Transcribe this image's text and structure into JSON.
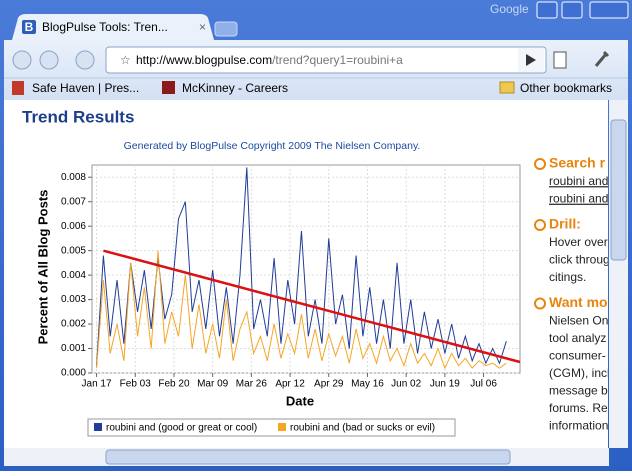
{
  "browser": {
    "tab_title": "BlogPulse Tools: Tren...",
    "brand": "Google",
    "url_host": "http://www.blogpulse.com",
    "url_rest": "/trend?query1=roubini+a",
    "bookmarks": [
      "Safe Haven | Pres...",
      "McKinney - Careers"
    ],
    "other_bookmarks": "Other bookmarks"
  },
  "page": {
    "heading": "Trend Results",
    "sidebar": [
      {
        "title": "Search r",
        "lines": [
          "roubini and",
          "roubini and"
        ]
      },
      {
        "title": "Drill:",
        "lines": [
          "Hover over",
          "click throug",
          "citings."
        ]
      },
      {
        "title": "Want mo",
        "lines": [
          "Nielsen On",
          "tool analyz",
          "consumer-",
          "(CGM), incl",
          "message b",
          "forums. Re",
          "information"
        ]
      }
    ]
  },
  "chart_data": {
    "type": "line",
    "title": "Generated by BlogPulse Copyright 2009 The Nielsen Company.",
    "x_label": "Date",
    "y_label": "Percent of All Blog Posts",
    "x": [
      0,
      3,
      6,
      9,
      12,
      15,
      18,
      21,
      24,
      27,
      30,
      33,
      36,
      39,
      42,
      45,
      48,
      51,
      54,
      57,
      60,
      63,
      66,
      69,
      72,
      75,
      78,
      81,
      84,
      87,
      90,
      93,
      96,
      99,
      102,
      105,
      108,
      111,
      114,
      117,
      120,
      123,
      126,
      129,
      132,
      135,
      138,
      141,
      144,
      147,
      150,
      153,
      156,
      159,
      162,
      165,
      168,
      171,
      174,
      177,
      180
    ],
    "series": [
      {
        "name": "roubini and (good or great or cool)",
        "color": "#1f3d99",
        "values": [
          0.0003,
          0.0048,
          0.0015,
          0.0038,
          0.0012,
          0.0045,
          0.0025,
          0.0042,
          0.0018,
          0.0047,
          0.0022,
          0.0032,
          0.0063,
          0.007,
          0.0025,
          0.0038,
          0.0018,
          0.0042,
          0.0015,
          0.0035,
          0.0012,
          0.004,
          0.0084,
          0.0018,
          0.003,
          0.0015,
          0.0047,
          0.0012,
          0.0038,
          0.002,
          0.0058,
          0.0015,
          0.003,
          0.0012,
          0.0055,
          0.002,
          0.0032,
          0.001,
          0.0048,
          0.0015,
          0.0035,
          0.0012,
          0.003,
          0.001,
          0.0045,
          0.0012,
          0.003,
          0.0008,
          0.0025,
          0.001,
          0.0022,
          0.0008,
          0.002,
          0.0006,
          0.0015,
          0.0005,
          0.0012,
          0.0004,
          0.001,
          0.0004,
          0.0013
        ]
      },
      {
        "name": "roubini and (bad or sucks or evil)",
        "color": "#f5a623",
        "values": [
          0.0002,
          0.0038,
          0.0008,
          0.002,
          0.0005,
          0.0045,
          0.0015,
          0.0035,
          0.001,
          0.005,
          0.0012,
          0.0025,
          0.0015,
          0.004,
          0.001,
          0.0028,
          0.0008,
          0.002,
          0.0006,
          0.003,
          0.0005,
          0.0018,
          0.0025,
          0.0008,
          0.0015,
          0.0005,
          0.002,
          0.0006,
          0.0016,
          0.0008,
          0.0024,
          0.0006,
          0.0018,
          0.0005,
          0.0016,
          0.0007,
          0.0015,
          0.0004,
          0.0018,
          0.0006,
          0.0012,
          0.0004,
          0.0015,
          0.0005,
          0.001,
          0.0003,
          0.0012,
          0.0004,
          0.0008,
          0.0003,
          0.001,
          0.0002,
          0.0008,
          0.0003,
          0.0006,
          0.0002,
          0.0005,
          0.0003,
          0.0004,
          0.0002,
          0.0004
        ]
      }
    ],
    "trend": {
      "color": "#dd1111",
      "x": [
        3,
        186
      ],
      "values": [
        0.005,
        0.00045
      ]
    },
    "xlim": [
      -2,
      186
    ],
    "xticks": [
      {
        "value": 0,
        "label": "Jan 17"
      },
      {
        "value": 17,
        "label": "Feb 03"
      },
      {
        "value": 34,
        "label": "Feb 20"
      },
      {
        "value": 51,
        "label": "Mar 09"
      },
      {
        "value": 68,
        "label": "Mar 26"
      },
      {
        "value": 85,
        "label": "Apr 12"
      },
      {
        "value": 102,
        "label": "Apr 29"
      },
      {
        "value": 119,
        "label": "May 16"
      },
      {
        "value": 136,
        "label": "Jun 02"
      },
      {
        "value": 153,
        "label": "Jun 19"
      },
      {
        "value": 170,
        "label": "Jul 06"
      }
    ],
    "ylim": [
      0,
      0.0085
    ],
    "yticks": [
      {
        "value": 0,
        "label": "0.000"
      },
      0.001,
      0.002,
      0.003,
      0.004,
      0.005,
      0.006,
      0.007,
      0.008
    ],
    "grid": true
  }
}
